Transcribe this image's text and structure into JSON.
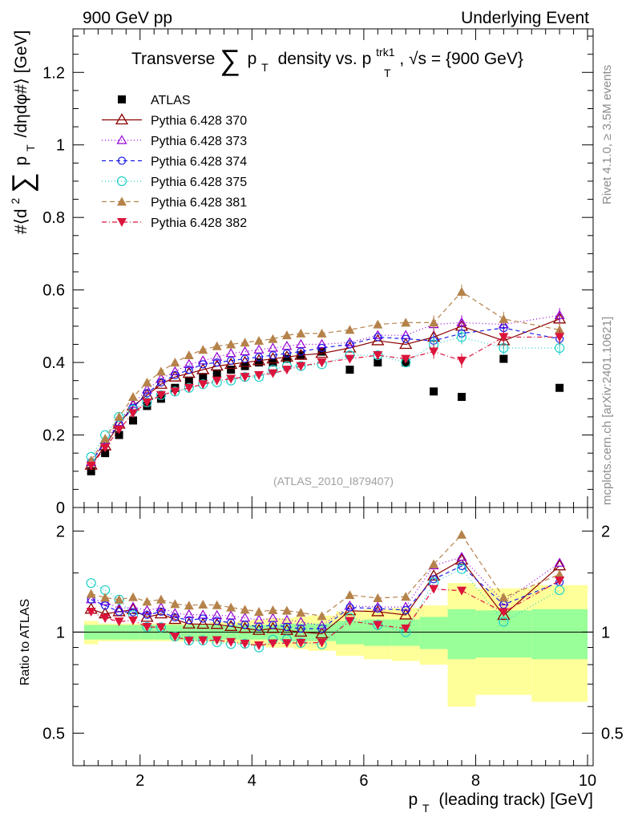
{
  "header": {
    "left": "900 GeV pp",
    "right": "Underlying Event"
  },
  "side_labels": {
    "rivet": "Rivet 4.1.0, ≥ 3.5M events",
    "mcplots": "mcplots.cern.ch [arXiv:2401.10621]"
  },
  "chart_data": {
    "type": "scatter",
    "title": "Transverse ∑ p_T density vs. p_T^trk1, √s = {900 GeV}",
    "title_parts": {
      "pre": "Transverse",
      "sum": "∑",
      "p": "p",
      "T": "T",
      "mid": "density vs. p",
      "trk1": "trk1",
      "tail": ", √s = {900 GeV}"
    },
    "ylabel_parts": {
      "pre": "#⟨d",
      "sq": "2",
      "sum": "∑",
      "p": "p",
      "T": "T",
      "post": "/dηdφ#⟩ [GeV]"
    },
    "xlabel_parts": {
      "p": "p",
      "T": "T",
      "rest": "(leading track) [GeV]"
    },
    "ratio_ylabel": "Ratio to ATLAS",
    "analysis_label": "(ATLAS_2010_I879407)",
    "xlim": [
      0.8,
      10.1
    ],
    "ylim": [
      0,
      1.32
    ],
    "ratio_ylim": [
      0.4,
      2.35
    ],
    "x_ticks": [
      2,
      4,
      6,
      8,
      10
    ],
    "x_tick_labels": [
      "2",
      "4",
      "6",
      "8",
      "10"
    ],
    "y_ticks": [
      0,
      0.2,
      0.4,
      0.6,
      0.8,
      1,
      1.2
    ],
    "y_tick_labels": [
      "0",
      "0.2",
      "0.4",
      "0.6",
      "0.8",
      "1",
      "1.2"
    ],
    "ratio_ticks": [
      0.5,
      1,
      2
    ],
    "ratio_tick_labels": [
      "0.5",
      "1",
      "2"
    ],
    "x": [
      1.125,
      1.375,
      1.625,
      1.875,
      2.125,
      2.375,
      2.625,
      2.875,
      3.125,
      3.375,
      3.625,
      3.875,
      4.125,
      4.375,
      4.625,
      4.875,
      5.25,
      5.75,
      6.25,
      6.75,
      7.25,
      7.75,
      8.5,
      9.5
    ],
    "x_edges": [
      1.0,
      1.25,
      1.5,
      1.75,
      2.0,
      2.25,
      2.5,
      2.75,
      3.0,
      3.25,
      3.5,
      3.75,
      4.0,
      4.25,
      4.5,
      4.75,
      5.0,
      5.5,
      6.0,
      6.5,
      7.0,
      7.5,
      8.0,
      9.0,
      10.0
    ],
    "atlas_values": [
      0.1,
      0.15,
      0.2,
      0.24,
      0.28,
      0.3,
      0.33,
      0.35,
      0.36,
      0.37,
      0.38,
      0.39,
      0.4,
      0.4,
      0.41,
      0.42,
      0.43,
      0.38,
      0.4,
      0.4,
      0.32,
      0.305,
      0.41,
      0.33
    ],
    "band_green": [
      0.05,
      0.05,
      0.05,
      0.05,
      0.05,
      0.05,
      0.05,
      0.05,
      0.05,
      0.05,
      0.05,
      0.05,
      0.05,
      0.05,
      0.06,
      0.06,
      0.06,
      0.08,
      0.09,
      0.09,
      0.11,
      0.17,
      0.16,
      0.17
    ],
    "band_yellow": [
      0.08,
      0.06,
      0.06,
      0.06,
      0.06,
      0.06,
      0.06,
      0.06,
      0.06,
      0.07,
      0.07,
      0.08,
      0.09,
      0.1,
      0.1,
      0.11,
      0.12,
      0.15,
      0.17,
      0.18,
      0.2,
      0.4,
      0.35,
      0.38
    ],
    "series": [
      {
        "name": "ATLAS",
        "legend": "ATLAS",
        "color": "#000000",
        "marker": "square-filled",
        "dash": "none",
        "values": [
          0.1,
          0.15,
          0.2,
          0.24,
          0.28,
          0.3,
          0.33,
          0.35,
          0.36,
          0.37,
          0.38,
          0.39,
          0.4,
          0.4,
          0.41,
          0.42,
          0.43,
          0.38,
          0.4,
          0.4,
          0.32,
          0.305,
          0.41,
          0.33
        ]
      },
      {
        "name": "Pythia 6.428 370",
        "legend": "Pythia 6.428 370",
        "color": "#8b0000",
        "marker": "triangle-open",
        "dash": "solid",
        "values": [
          0.117,
          0.17,
          0.23,
          0.28,
          0.31,
          0.34,
          0.36,
          0.37,
          0.38,
          0.39,
          0.395,
          0.4,
          0.405,
          0.41,
          0.415,
          0.42,
          0.425,
          0.44,
          0.46,
          0.45,
          0.47,
          0.5,
          0.46,
          0.52
        ]
      },
      {
        "name": "Pythia 6.428 373",
        "legend": "Pythia 6.428 373",
        "color": "#9400d3",
        "marker": "triangle-open-small",
        "dash": "1,3",
        "values": [
          0.125,
          0.185,
          0.235,
          0.285,
          0.325,
          0.355,
          0.375,
          0.395,
          0.405,
          0.415,
          0.425,
          0.43,
          0.435,
          0.44,
          0.445,
          0.45,
          0.45,
          0.455,
          0.475,
          0.475,
          0.505,
          0.51,
          0.505,
          0.53
        ]
      },
      {
        "name": "Pythia 6.428 374",
        "legend": "Pythia 6.428 374",
        "color": "#1a1ae6",
        "marker": "circle-open",
        "dash": "5,4",
        "values": [
          0.125,
          0.18,
          0.23,
          0.275,
          0.315,
          0.345,
          0.365,
          0.38,
          0.395,
          0.4,
          0.405,
          0.41,
          0.415,
          0.42,
          0.425,
          0.43,
          0.44,
          0.45,
          0.47,
          0.465,
          0.46,
          0.48,
          0.495,
          0.465
        ]
      },
      {
        "name": "Pythia 6.428 375",
        "legend": "Pythia 6.428 375",
        "color": "#20d0c8",
        "marker": "circle-open-big",
        "dash": "1,3",
        "values": [
          0.14,
          0.2,
          0.25,
          0.27,
          0.29,
          0.31,
          0.32,
          0.33,
          0.34,
          0.345,
          0.35,
          0.36,
          0.36,
          0.38,
          0.39,
          0.39,
          0.395,
          0.42,
          0.42,
          0.4,
          0.45,
          0.47,
          0.44,
          0.44
        ]
      },
      {
        "name": "Pythia 6.428 381",
        "legend": "Pythia 6.428 381",
        "color": "#b5824a",
        "marker": "triangle-filled",
        "dash": "6,4",
        "values": [
          0.13,
          0.19,
          0.25,
          0.305,
          0.345,
          0.375,
          0.4,
          0.42,
          0.435,
          0.445,
          0.45,
          0.455,
          0.46,
          0.465,
          0.475,
          0.48,
          0.48,
          0.49,
          0.505,
          0.51,
          0.51,
          0.595,
          0.52,
          0.49
        ]
      },
      {
        "name": "Pythia 6.428 382",
        "legend": "Pythia 6.428 382",
        "color": "#dc143c",
        "marker": "triangle-down-filled",
        "dash": "6,3,1,3",
        "values": [
          0.115,
          0.165,
          0.215,
          0.26,
          0.29,
          0.31,
          0.32,
          0.33,
          0.34,
          0.35,
          0.355,
          0.36,
          0.365,
          0.37,
          0.38,
          0.39,
          0.4,
          0.41,
          0.42,
          0.41,
          0.43,
          0.405,
          0.47,
          0.47
        ]
      }
    ]
  }
}
